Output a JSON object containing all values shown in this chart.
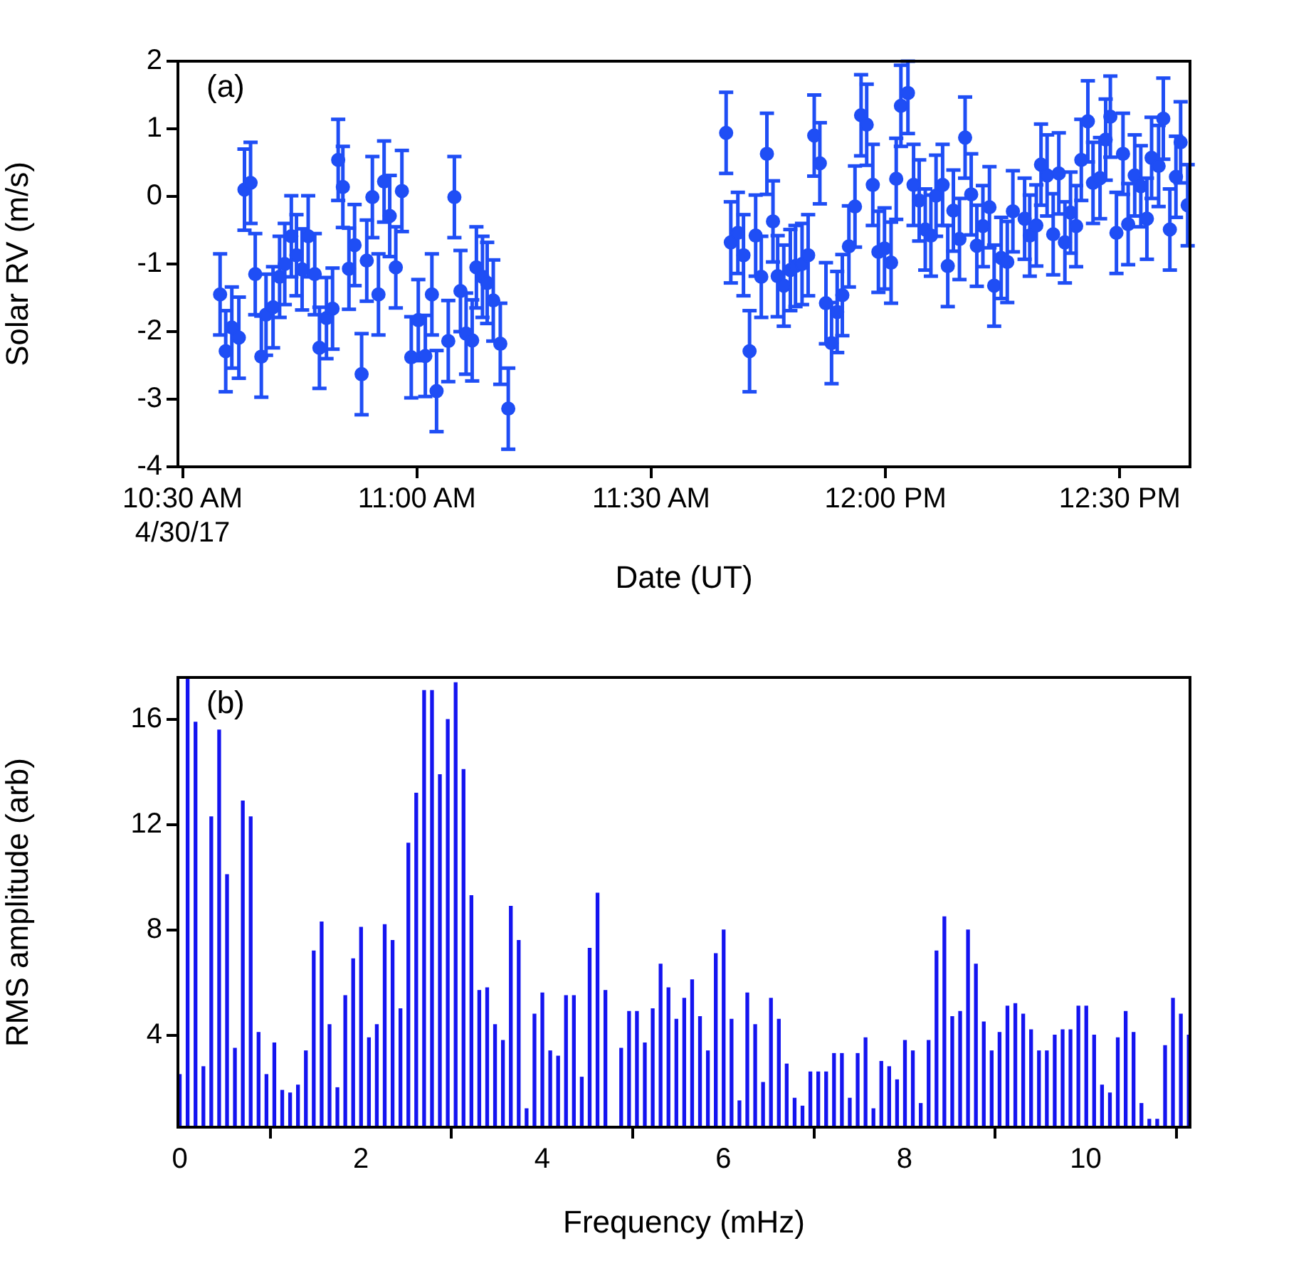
{
  "chart_data": [
    {
      "type": "scatter",
      "annotations": [
        "(a)"
      ],
      "xlabel": "Date (UT)",
      "ylabel": "Solar RV (m/s)",
      "color": "#1f4ef5",
      "marker": "circle",
      "x": [
        10.58,
        10.592,
        10.605,
        10.62,
        10.632,
        10.645,
        10.655,
        10.668,
        10.678,
        10.693,
        10.707,
        10.718,
        10.732,
        10.743,
        10.755,
        10.768,
        10.782,
        10.792,
        10.807,
        10.82,
        10.832,
        10.842,
        10.855,
        10.867,
        10.882,
        10.893,
        10.905,
        10.918,
        10.93,
        10.942,
        10.955,
        10.968,
        10.988,
        11.003,
        11.018,
        11.032,
        11.042,
        11.067,
        11.08,
        11.093,
        11.105,
        11.118,
        11.127,
        11.14,
        11.15,
        11.163,
        11.178,
        11.195,
        11.66,
        11.67,
        11.685,
        11.697,
        11.71,
        11.723,
        11.735,
        11.747,
        11.76,
        11.77,
        11.783,
        11.797,
        11.808,
        11.822,
        11.835,
        11.848,
        11.86,
        11.873,
        11.885,
        11.897,
        11.908,
        11.922,
        11.935,
        11.948,
        11.96,
        11.973,
        11.985,
        11.998,
        12.012,
        12.023,
        12.033,
        12.048,
        12.06,
        12.072,
        12.085,
        12.097,
        12.108,
        12.122,
        12.133,
        12.145,
        12.158,
        12.17,
        12.183,
        12.195,
        12.208,
        12.222,
        12.232,
        12.247,
        12.26,
        12.272,
        12.297,
        12.308,
        12.322,
        12.332,
        12.345,
        12.358,
        12.37,
        12.383,
        12.395,
        12.407,
        12.418,
        12.432,
        12.443,
        12.458,
        12.47,
        12.48,
        12.493,
        12.507,
        12.518,
        12.532,
        12.545,
        12.558,
        12.568,
        12.583,
        12.593,
        12.607,
        12.62,
        12.63,
        12.645
      ],
      "values": [
        -1.45,
        -2.29,
        -1.94,
        -2.09,
        0.1,
        0.2,
        -1.15,
        -2.37,
        -1.75,
        -1.64,
        -1.19,
        -1.0,
        -0.59,
        -0.87,
        -1.08,
        -0.59,
        -1.15,
        -2.24,
        -1.8,
        -1.66,
        0.54,
        0.14,
        -1.07,
        -0.72,
        -2.63,
        -0.95,
        -0.01,
        -1.45,
        0.22,
        -0.29,
        -1.05,
        0.08,
        -2.38,
        -1.83,
        -2.36,
        -1.45,
        -2.88,
        -2.14,
        -0.01,
        -1.4,
        -2.03,
        -2.13,
        -1.05,
        -1.19,
        -1.28,
        -1.54,
        -2.18,
        -3.14,
        0.94,
        -0.68,
        -0.54,
        -0.87,
        -2.29,
        -0.58,
        -1.19,
        0.63,
        -0.37,
        -1.18,
        -1.32,
        -1.09,
        -1.03,
        -1.0,
        -0.87,
        0.9,
        0.49,
        -1.58,
        -2.17,
        -1.71,
        -1.46,
        -0.74,
        -0.15,
        1.2,
        1.06,
        0.17,
        -0.82,
        -0.77,
        -0.98,
        0.26,
        1.34,
        1.53,
        0.17,
        -0.06,
        -0.49,
        -0.58,
        0.01,
        0.17,
        -1.03,
        -0.21,
        -0.63,
        0.87,
        0.03,
        -0.73,
        -0.44,
        -0.16,
        -1.32,
        -0.91,
        -0.97,
        -0.22,
        -0.33,
        -0.58,
        -0.43,
        0.47,
        0.31,
        -0.56,
        0.34,
        -0.68,
        -0.24,
        -0.44,
        0.54,
        1.11,
        0.2,
        0.27,
        0.84,
        1.18,
        -0.54,
        0.63,
        -0.41,
        0.31,
        0.15,
        -0.33,
        0.57,
        0.45,
        1.15,
        -0.49,
        0.29,
        0.8,
        -0.13
      ],
      "errors": [
        0.6,
        0.6,
        0.6,
        0.6,
        0.6,
        0.6,
        0.6,
        0.6,
        0.6,
        0.6,
        0.6,
        0.6,
        0.6,
        0.6,
        0.6,
        0.6,
        0.6,
        0.6,
        0.6,
        0.6,
        0.6,
        0.6,
        0.6,
        0.6,
        0.6,
        0.6,
        0.6,
        0.6,
        0.6,
        0.6,
        0.6,
        0.6,
        0.6,
        0.6,
        0.6,
        0.6,
        0.6,
        0.6,
        0.6,
        0.6,
        0.6,
        0.6,
        0.6,
        0.6,
        0.6,
        0.6,
        0.6,
        0.6,
        0.6,
        0.6,
        0.6,
        0.6,
        0.6,
        0.6,
        0.6,
        0.6,
        0.6,
        0.6,
        0.6,
        0.6,
        0.6,
        0.6,
        0.6,
        0.6,
        0.6,
        0.6,
        0.6,
        0.6,
        0.6,
        0.6,
        0.6,
        0.6,
        0.6,
        0.6,
        0.6,
        0.6,
        0.6,
        0.6,
        0.6,
        [
          0.93,
          2
        ],
        0.6,
        0.6,
        0.6,
        0.6,
        0.6,
        0.6,
        0.6,
        0.6,
        0.6,
        0.6,
        0.6,
        0.6,
        0.6,
        0.6,
        0.6,
        0.6,
        0.6,
        0.6,
        0.6,
        0.6,
        0.6,
        0.6,
        0.6,
        0.6,
        0.6,
        0.6,
        0.6,
        0.6,
        0.6,
        0.6,
        0.6,
        0.6,
        0.6,
        0.6,
        0.6,
        0.6,
        0.6,
        0.6,
        0.6,
        0.6,
        0.6,
        0.6,
        0.6,
        0.6,
        0.6,
        0.6,
        0.6
      ],
      "xlim": [
        10.49,
        12.65
      ],
      "xticks": [
        {
          "value": 10.5,
          "label": "10:30 AM\n4/30/17"
        },
        {
          "value": 11,
          "label": "11:00 AM"
        },
        {
          "value": 11.5,
          "label": "11:30 AM"
        },
        {
          "value": 12,
          "label": "12:00 PM"
        },
        {
          "value": 12.5,
          "label": "12:30 PM"
        }
      ],
      "ylim": [
        -4,
        2
      ],
      "yticks": [
        -4,
        -3,
        -2,
        -1,
        0,
        1,
        2
      ]
    },
    {
      "type": "bar",
      "annotations": [
        "(b)"
      ],
      "xlabel": "Frequency (mHz)",
      "ylabel": "RMS amplitude (arb)",
      "color": "#1414f0",
      "x": [
        0,
        0.087,
        0.174,
        0.261,
        0.348,
        0.435,
        0.522,
        0.609,
        0.696,
        0.783,
        0.87,
        0.957,
        1.044,
        1.131,
        1.218,
        1.305,
        1.392,
        1.479,
        1.566,
        1.653,
        1.74,
        1.827,
        1.914,
        2.001,
        2.088,
        2.175,
        2.262,
        2.349,
        2.436,
        2.523,
        2.61,
        2.697,
        2.784,
        2.871,
        2.958,
        3.045,
        3.132,
        3.219,
        3.306,
        3.393,
        3.48,
        3.567,
        3.654,
        3.741,
        3.828,
        3.915,
        4.002,
        4.089,
        4.176,
        4.263,
        4.35,
        4.437,
        4.524,
        4.611,
        4.698,
        4.785,
        4.872,
        4.959,
        5.046,
        5.133,
        5.22,
        5.307,
        5.394,
        5.481,
        5.568,
        5.655,
        5.742,
        5.829,
        5.916,
        6.003,
        6.09,
        6.177,
        6.264,
        6.351,
        6.438,
        6.525,
        6.612,
        6.699,
        6.786,
        6.873,
        6.96,
        7.047,
        7.134,
        7.221,
        7.308,
        7.395,
        7.482,
        7.569,
        7.656,
        7.743,
        7.83,
        7.917,
        8.004,
        8.091,
        8.178,
        8.265,
        8.352,
        8.439,
        8.526,
        8.613,
        8.7,
        8.787,
        8.874,
        8.961,
        9.048,
        9.135,
        9.222,
        9.309,
        9.396,
        9.483,
        9.57,
        9.657,
        9.744,
        9.831,
        9.918,
        10.005,
        10.092,
        10.179,
        10.266,
        10.353,
        10.44,
        10.527,
        10.614,
        10.701,
        10.788,
        10.875,
        10.962,
        11.049,
        11.136
      ],
      "values": [
        2.5,
        17.6,
        15.9,
        2.8,
        12.3,
        15.6,
        10.1,
        3.5,
        12.9,
        12.3,
        4.1,
        2.5,
        3.7,
        1.9,
        1.8,
        2.1,
        3.4,
        7.2,
        8.3,
        4.4,
        2.0,
        5.5,
        6.9,
        8.1,
        3.9,
        4.4,
        8.2,
        7.6,
        5.0,
        11.3,
        13.2,
        17.1,
        17.1,
        13.9,
        16.0,
        17.4,
        14.1,
        9.3,
        5.7,
        5.8,
        4.4,
        3.8,
        8.9,
        7.6,
        1.2,
        4.8,
        5.6,
        3.4,
        3.2,
        5.5,
        5.5,
        2.4,
        7.3,
        9.4,
        5.7,
        null,
        3.5,
        4.9,
        4.9,
        3.7,
        5.0,
        6.7,
        5.8,
        4.6,
        5.4,
        6.1,
        4.7,
        3.4,
        7.1,
        8.0,
        4.6,
        1.5,
        5.6,
        4.4,
        2.2,
        5.4,
        4.6,
        2.9,
        1.6,
        1.3,
        2.6,
        2.6,
        2.6,
        3.3,
        3.3,
        1.6,
        3.3,
        3.9,
        1.2,
        3.0,
        2.8,
        2.3,
        3.8,
        3.4,
        1.4,
        3.8,
        7.2,
        8.5,
        4.7,
        4.9,
        8.0,
        6.7,
        4.5,
        3.4,
        4.1,
        5.1,
        5.2,
        4.8,
        4.2,
        3.4,
        3.4,
        4.0,
        4.2,
        4.2,
        5.1,
        5.1,
        4.0,
        2.1,
        1.8,
        3.9,
        4.9,
        4.1,
        1.4,
        0.8,
        0.8,
        3.6,
        5.4,
        4.8,
        4.0
      ],
      "xlim": [
        -0.02,
        11.15
      ],
      "xticks": [
        0,
        2,
        4,
        6,
        8,
        10
      ],
      "ylim": [
        0.5,
        17.6
      ],
      "yticks": [
        4,
        8,
        12,
        16
      ]
    }
  ]
}
